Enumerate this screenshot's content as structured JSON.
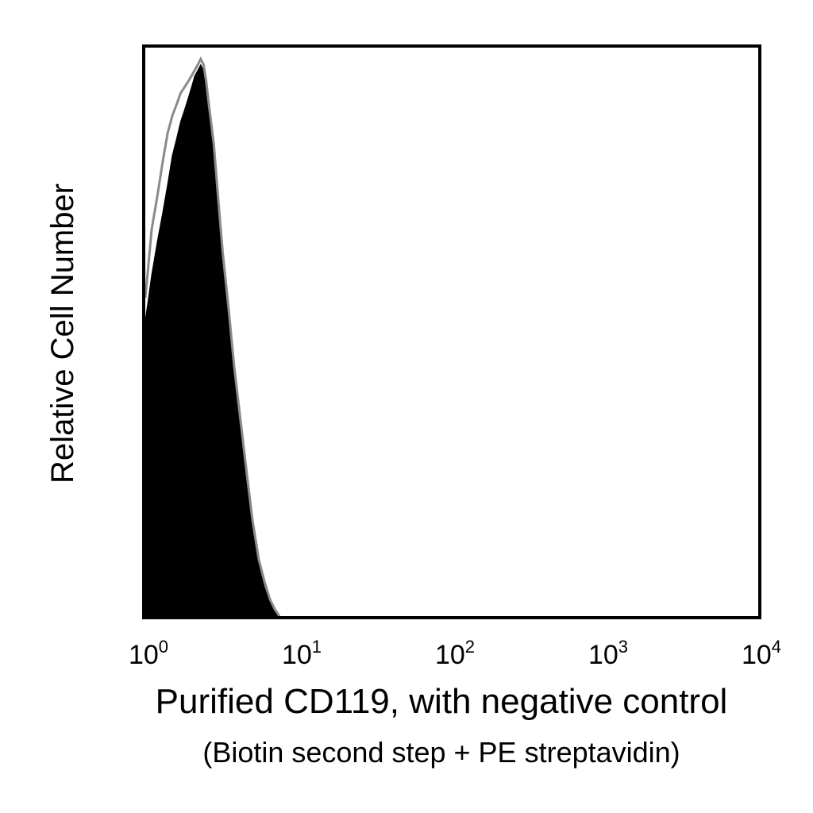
{
  "chart_data": {
    "type": "area",
    "title": "",
    "xlabel": "Purified CD119, with negative control",
    "xlabel_sub": "(Biotin second step + PE streptavidin)",
    "ylabel": "Relative Cell Number",
    "x_scale": "log",
    "xlim": [
      1,
      10000
    ],
    "ylim": [
      0,
      1
    ],
    "grid": false,
    "legend": "none",
    "x_ticks": [
      {
        "base": "10",
        "exp": "0",
        "value": 1
      },
      {
        "base": "10",
        "exp": "1",
        "value": 10
      },
      {
        "base": "10",
        "exp": "2",
        "value": 100
      },
      {
        "base": "10",
        "exp": "3",
        "value": 1000
      },
      {
        "base": "10",
        "exp": "4",
        "value": 10000
      }
    ],
    "series": [
      {
        "style": "filled",
        "color": "#000000",
        "x": [
          1.0,
          1.05,
          1.1,
          1.2,
          1.3,
          1.4,
          1.5,
          1.6,
          1.7,
          1.8,
          1.9,
          2.0,
          2.1,
          2.2,
          2.3,
          2.4,
          2.5,
          2.6,
          2.8,
          3.0,
          3.2,
          3.5,
          3.8,
          4.2,
          4.6,
          5.0,
          5.5,
          6.0,
          6.5,
          7.0,
          7.5
        ],
        "values": [
          0.52,
          0.56,
          0.6,
          0.66,
          0.71,
          0.76,
          0.81,
          0.84,
          0.87,
          0.89,
          0.91,
          0.93,
          0.95,
          0.96,
          0.97,
          0.96,
          0.93,
          0.89,
          0.82,
          0.72,
          0.63,
          0.53,
          0.43,
          0.33,
          0.24,
          0.16,
          0.09,
          0.05,
          0.025,
          0.01,
          0.0
        ]
      },
      {
        "style": "outline",
        "color": "#8a8a8a",
        "x": [
          1.0,
          1.05,
          1.1,
          1.2,
          1.3,
          1.4,
          1.5,
          1.6,
          1.7,
          1.8,
          1.9,
          2.0,
          2.1,
          2.2,
          2.3,
          2.4,
          2.5,
          2.6,
          2.8,
          3.0,
          3.2,
          3.5,
          3.8,
          4.2,
          4.6,
          5.0,
          5.5,
          6.0,
          6.5,
          7.0,
          7.5
        ],
        "values": [
          0.56,
          0.62,
          0.68,
          0.74,
          0.8,
          0.85,
          0.88,
          0.9,
          0.92,
          0.93,
          0.94,
          0.95,
          0.96,
          0.97,
          0.98,
          0.97,
          0.94,
          0.9,
          0.83,
          0.73,
          0.64,
          0.54,
          0.44,
          0.34,
          0.25,
          0.17,
          0.1,
          0.06,
          0.03,
          0.012,
          0.0
        ]
      }
    ]
  }
}
